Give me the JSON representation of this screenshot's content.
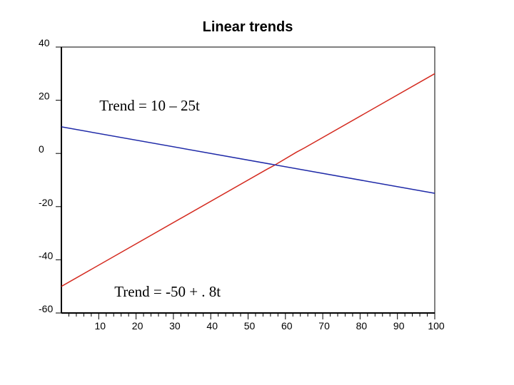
{
  "chart_data": {
    "type": "line",
    "title": "Linear trends",
    "xlabel": "",
    "ylabel": "",
    "xlim": [
      0,
      100
    ],
    "ylim": [
      -60,
      40
    ],
    "x_ticks": [
      10,
      20,
      30,
      40,
      50,
      60,
      70,
      80,
      90,
      100
    ],
    "y_ticks": [
      40,
      20,
      0,
      -20,
      -40,
      -60
    ],
    "grid": false,
    "series": [
      {
        "color": "#d42a1f",
        "x": [
          0,
          55,
          57,
          63,
          65,
          100
        ],
        "y": [
          -50,
          -6,
          -4.5,
          0.5,
          2,
          30
        ]
      },
      {
        "color": "#1f2aa8",
        "x": [
          0,
          100
        ],
        "y": [
          10,
          -15
        ]
      }
    ],
    "annotations": [
      {
        "text": "Trend = 10 – 25t",
        "x": 10,
        "y": 18
      },
      {
        "text": "Trend = -50 + . 8t",
        "x": 14,
        "y": -52
      }
    ]
  }
}
